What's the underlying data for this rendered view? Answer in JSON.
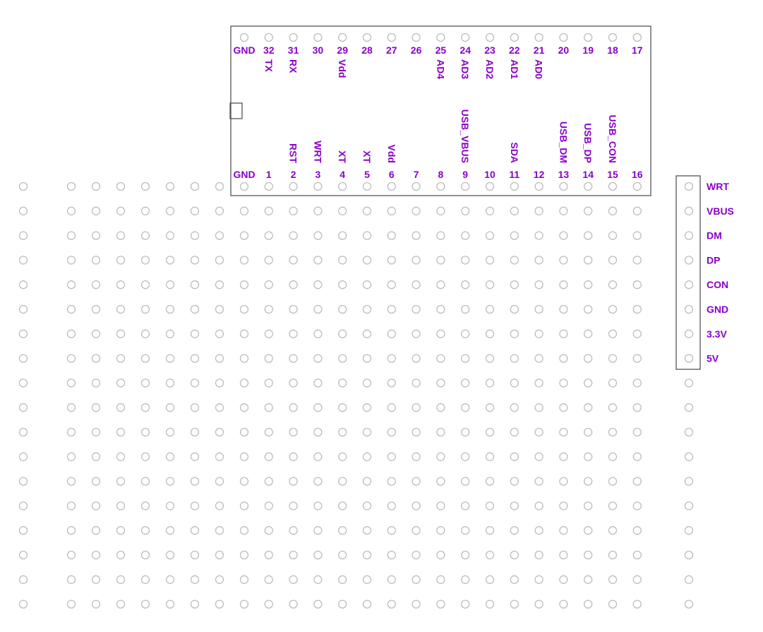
{
  "diagram": {
    "colors": {
      "label": "#8a00c8",
      "hole": "#bdbdbd",
      "outline": "#555555"
    },
    "chip": {
      "top_row": {
        "numbers": [
          "GND",
          "32",
          "31",
          "30",
          "29",
          "28",
          "27",
          "26",
          "25",
          "24",
          "23",
          "22",
          "21",
          "20",
          "19",
          "18",
          "17"
        ],
        "signals": [
          "",
          "TX",
          "RX",
          "",
          "Vdd",
          "",
          "",
          "",
          "AD4",
          "AD3",
          "AD2",
          "AD1",
          "AD0",
          "",
          "",
          "",
          ""
        ]
      },
      "bottom_row": {
        "numbers": [
          "GND",
          "1",
          "2",
          "3",
          "4",
          "5",
          "6",
          "7",
          "8",
          "9",
          "10",
          "11",
          "12",
          "13",
          "14",
          "15",
          "16"
        ],
        "signals": [
          "",
          "",
          "RST",
          "WRT",
          "XT",
          "XT",
          "Vdd",
          "",
          "",
          "USB_VBUS",
          "",
          "SDA",
          "",
          "USB_DM",
          "USB_DP",
          "USB_CON",
          ""
        ]
      }
    },
    "connector": {
      "pins": [
        "WRT",
        "VBUS",
        "DM",
        "DP",
        "CON",
        "GND",
        "3.3V",
        "5V"
      ]
    }
  }
}
